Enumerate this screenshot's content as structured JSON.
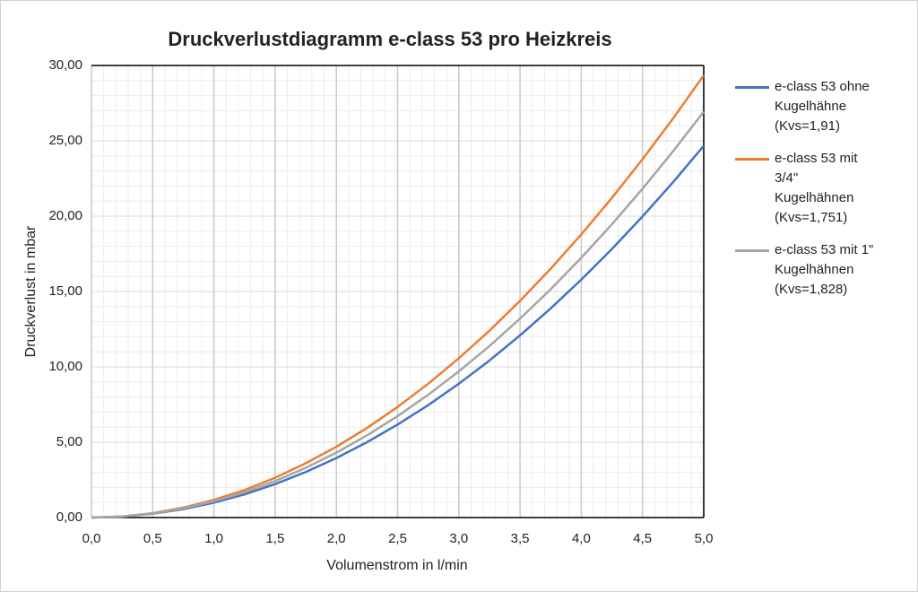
{
  "chart_data": {
    "type": "line",
    "title": "Druckverlustdiagramm e-class 53 pro Heizkreis",
    "x_label": "Volumenstrom in l/min",
    "y_label": "Druckverlust in mbar",
    "x": [
      0,
      0.25,
      0.5,
      0.75,
      1,
      1.25,
      1.5,
      1.75,
      2,
      2.25,
      2.5,
      2.75,
      3,
      3.25,
      3.5,
      3.75,
      4,
      4.25,
      4.5,
      4.75,
      5
    ],
    "series": [
      {
        "name": "e-class 53 ohne Kugelhähne (Kvs=1,91)",
        "color": "#4472c4",
        "values": [
          0,
          0.06,
          0.25,
          0.56,
          0.99,
          1.54,
          2.22,
          3.02,
          3.95,
          5.0,
          6.17,
          7.46,
          8.88,
          10.42,
          12.09,
          13.88,
          15.79,
          17.82,
          19.98,
          22.26,
          24.67
        ]
      },
      {
        "name": "e-class 53 mit 3/4\" Kugelhähnen (Kvs=1,751)",
        "color": "#ed7d31",
        "values": [
          0,
          0.07,
          0.29,
          0.66,
          1.17,
          1.83,
          2.64,
          3.6,
          4.7,
          5.94,
          7.34,
          8.88,
          10.57,
          12.4,
          14.38,
          16.51,
          18.79,
          21.21,
          23.78,
          26.49,
          29.35
        ]
      },
      {
        "name": "e-class 53 mit 1\" Kugelhähnen (Kvs=1,828)",
        "color": "#a5a5a5",
        "values": [
          0,
          0.07,
          0.27,
          0.61,
          1.08,
          1.68,
          2.42,
          3.3,
          4.31,
          5.45,
          6.73,
          8.15,
          9.7,
          11.38,
          13.2,
          15.15,
          17.24,
          19.46,
          21.82,
          24.31,
          26.93
        ]
      }
    ],
    "xlim": [
      0,
      5
    ],
    "ylim": [
      0,
      30
    ],
    "xticks": [
      {
        "value": 0,
        "label": "0,0"
      },
      {
        "value": 0.5,
        "label": "0,5"
      },
      {
        "value": 1,
        "label": "1,0"
      },
      {
        "value": 1.5,
        "label": "1,5"
      },
      {
        "value": 2,
        "label": "2,0"
      },
      {
        "value": 2.5,
        "label": "2,5"
      },
      {
        "value": 3,
        "label": "3,0"
      },
      {
        "value": 3.5,
        "label": "3,5"
      },
      {
        "value": 4,
        "label": "4,0"
      },
      {
        "value": 4.5,
        "label": "4,5"
      },
      {
        "value": 5,
        "label": "5,0"
      }
    ],
    "yticks": [
      {
        "value": 0,
        "label": "0,00"
      },
      {
        "value": 5,
        "label": "5,00"
      },
      {
        "value": 10,
        "label": "10,00"
      },
      {
        "value": 15,
        "label": "15,00"
      },
      {
        "value": 20,
        "label": "20,00"
      },
      {
        "value": 25,
        "label": "25,00"
      },
      {
        "value": 30,
        "label": "30,00"
      }
    ],
    "grid": true,
    "minor_grid": true,
    "legend": "right"
  }
}
